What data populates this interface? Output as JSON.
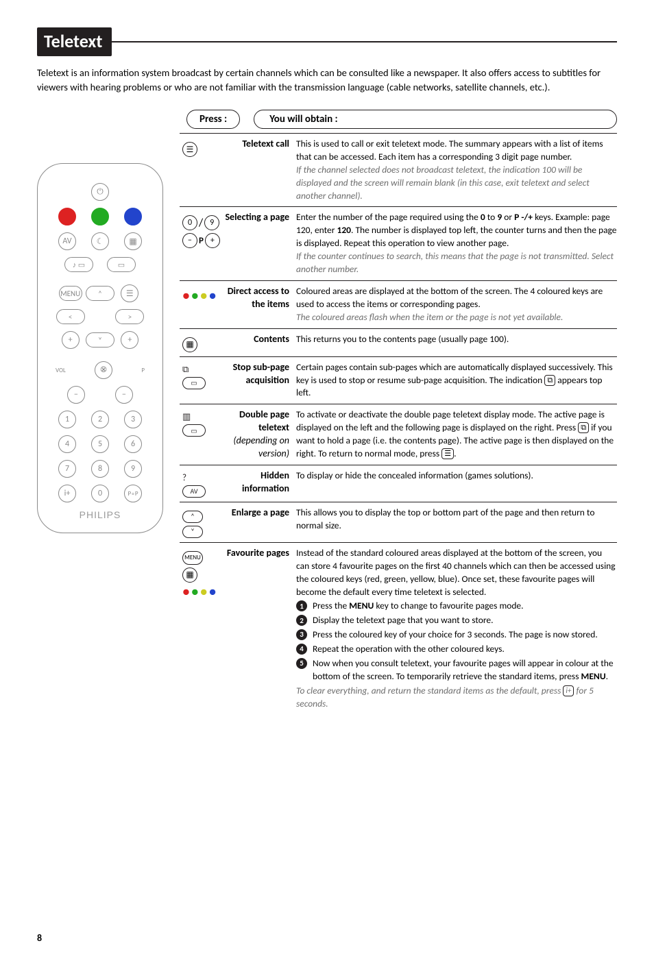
{
  "page_number": "8",
  "title": "Teletext",
  "intro": "Teletext is an information system broadcast by certain channels which can be consulted like a newspaper. It also offers access to subtitles for viewers with hearing problems or who are not familiar with the transmission language (cable networks, satellite channels, etc.).",
  "head_press": "Press :",
  "head_obtain": "You will obtain :",
  "remote_brand": "PHILIPS",
  "rows": [
    {
      "icon_block": "teletext-call",
      "label_plain": "Teletext call",
      "body": "This is used to call or exit teletext mode. The summary appears with a list of items that can be accessed. Each item has a corresponding 3 digit page number.",
      "body_ital": "If the channel selected does not broadcast teletext, the indication 100 will be displayed and the screen will remain blank (in this case, exit teletext and select another channel)."
    },
    {
      "icon_block": "selecting-page",
      "label_plain": "Selecting a page",
      "body": "Enter the number of the page required using the 0 to 9 or P -/+ keys. Example: page 120, enter 120. The number is displayed top left, the counter turns and then the page is displayed. Repeat this operation to view another page.",
      "body_ital": "If the counter continues to search, this means that the page is not transmitted. Select another number."
    },
    {
      "icon_block": "direct-access",
      "label_plain": "Direct access to the items",
      "body": "Coloured areas are displayed at the bottom of the screen. The 4 coloured keys are used to access the items or corresponding pages.",
      "body_ital": "The coloured areas flash when the item or the page is not yet available."
    },
    {
      "icon_block": "contents",
      "label_plain": "Contents",
      "body": "This returns you to the contents page (usually page 100).",
      "body_ital": ""
    },
    {
      "icon_block": "stop-subpage",
      "label_plain": "Stop sub-page acquisition",
      "body_html": "Certain pages contain sub-pages which are automatically displayed successively. This key is used to stop or resume sub-page acquisition. The indication <span class=\"key\">⧉</span> appears top left.",
      "body_ital": ""
    },
    {
      "icon_block": "double-page",
      "label_html": "<span>Double page teletext</span><br><span class=\"sub\">(depending on version)</span>",
      "body_html": "To activate or deactivate the double page teletext display mode. The active page is displayed on the left and the following page is displayed on the right. Press <span class=\"key\">⧉</span> if you want to hold a page (i.e. the contents page). The active page is then displayed on the right. To return to normal mode, press <span class=\"key\">☰</span>.",
      "body_ital": ""
    },
    {
      "icon_block": "hidden",
      "label_plain": "Hidden information",
      "body": "To display or hide the concealed information (games solutions).",
      "body_ital": ""
    },
    {
      "icon_block": "enlarge",
      "label_plain": "Enlarge a page",
      "body": "This allows you to display the top or bottom part of the page and then return to normal size.",
      "body_ital": ""
    },
    {
      "icon_block": "favourite",
      "label_plain": "Favourite pages",
      "body": "Instead of the standard coloured areas displayed at the bottom of the screen, you can store 4 favourite pages on the first 40 channels which can then be accessed using the coloured keys (red, green, yellow, blue). Once set, these favourite pages will become the default every time teletext is selected.",
      "steps": [
        "Press the MENU key to change to favourite pages mode.",
        "Display the teletext page that you want to store.",
        "Press the coloured key of your choice for 3 seconds. The page is now stored.",
        "Repeat the operation with the other coloured keys.",
        "Now when you consult teletext, your favourite pages will appear in colour at the bottom of the screen. To temporarily retrieve the standard items, press MENU."
      ],
      "body_ital_html": "To clear everything, and return the standard items as the default, press <span class=\"key\">i+</span> for 5 seconds."
    }
  ]
}
